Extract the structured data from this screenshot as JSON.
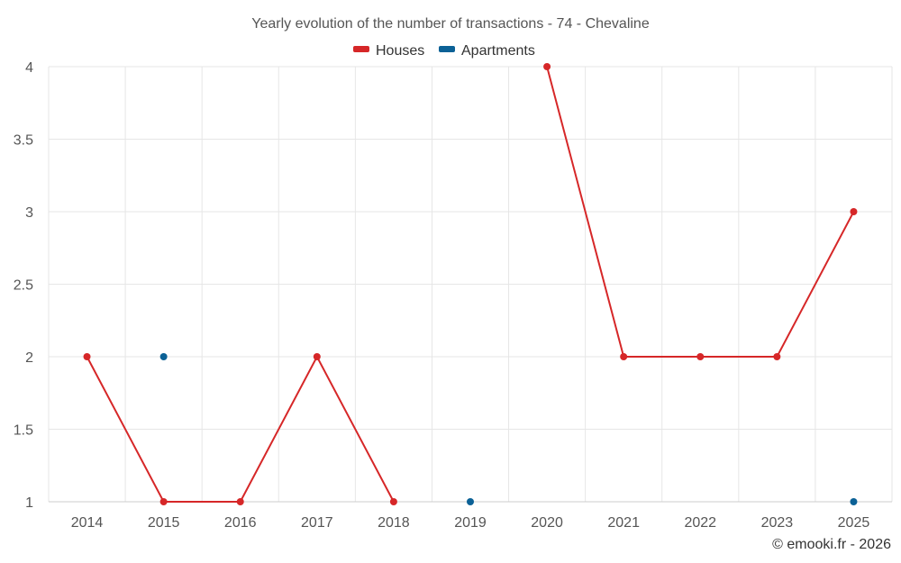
{
  "chart_data": {
    "type": "line",
    "title": "Yearly evolution of the number of transactions - 74 - Chevaline",
    "categories": [
      "2014",
      "2015",
      "2016",
      "2017",
      "2018",
      "2019",
      "2020",
      "2021",
      "2022",
      "2023",
      "2025"
    ],
    "series": [
      {
        "name": "Houses",
        "color": "#d62728",
        "values": [
          2,
          1,
          1,
          2,
          1,
          null,
          4,
          2,
          2,
          2,
          3
        ]
      },
      {
        "name": "Apartments",
        "color": "#0b6196",
        "values": [
          null,
          2,
          null,
          null,
          null,
          1,
          null,
          null,
          null,
          null,
          1
        ]
      }
    ],
    "ylim": [
      1,
      4
    ],
    "yticks": [
      1,
      1.5,
      2,
      2.5,
      3,
      3.5,
      4
    ],
    "grid": true,
    "legend_position": "top-center",
    "xlabel": "",
    "ylabel": ""
  },
  "credit": "© emooki.fr - 2026"
}
